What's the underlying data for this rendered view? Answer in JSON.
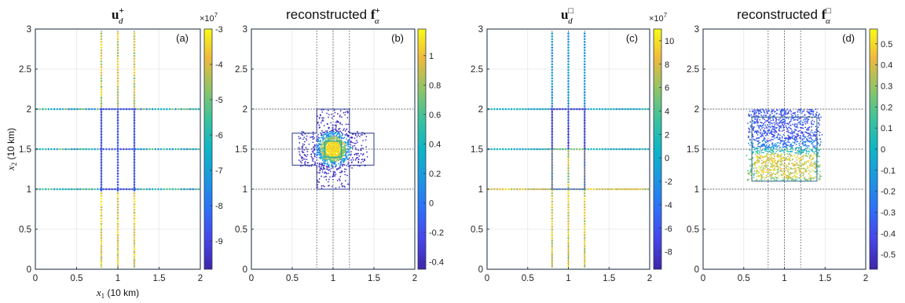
{
  "chart_data": [
    {
      "type": "scatter",
      "panel_label": "(a)",
      "title_main": "u",
      "title_sub": "d",
      "title_sup": "+",
      "title_prefix": "",
      "xlabel": "x",
      "xlabel_sub": "1",
      "xlabel_unit": " (10 km)",
      "ylabel": "x",
      "ylabel_sub": "2",
      "ylabel_unit": " (10 km)",
      "xlim": [
        0,
        2
      ],
      "ylim": [
        0,
        3
      ],
      "xticks": [
        "0",
        "0.5",
        "1",
        "1.5",
        "2"
      ],
      "yticks": [
        "0",
        "0.5",
        "1",
        "1.5",
        "2",
        "2.5",
        "3"
      ],
      "colorbar": {
        "range": [
          -9.8,
          -3
        ],
        "ticks": [
          "-3",
          "-4",
          "-5",
          "-6",
          "-7",
          "-8",
          "-9"
        ],
        "tick_values": [
          -3,
          -4,
          -5,
          -6,
          -7,
          -8,
          -9
        ],
        "exponent_base": "×10",
        "exponent_power": "7"
      },
      "guide_lines_v": [
        0.8,
        1.0,
        1.2
      ],
      "guide_lines_h": [
        1.0,
        1.5,
        2.0
      ]
    },
    {
      "type": "scatter",
      "panel_label": "(b)",
      "title_prefix": "reconstructed ",
      "title_main": "f",
      "title_sub": "α",
      "title_sup": "+",
      "xlim": [
        0,
        2
      ],
      "ylim": [
        0,
        3
      ],
      "xticks": [
        "0",
        "0.5",
        "1",
        "1.5",
        "2"
      ],
      "yticks": [
        "0",
        "0.5",
        "1",
        "1.5",
        "2",
        "2.5",
        "3"
      ],
      "colorbar": {
        "range": [
          -0.45,
          1.18
        ],
        "ticks": [
          "1",
          "0.8",
          "0.6",
          "0.4",
          "0.2",
          "0",
          "-0.2",
          "-0.4"
        ],
        "tick_values": [
          1,
          0.8,
          0.6,
          0.4,
          0.2,
          0,
          -0.2,
          -0.4
        ]
      },
      "guide_lines_v": [
        0.8,
        1.0,
        1.2
      ],
      "guide_lines_h": [
        1.0,
        1.5,
        2.0
      ]
    },
    {
      "type": "scatter",
      "panel_label": "(c)",
      "title_main": "u",
      "title_sub": "d",
      "title_sup": "□",
      "title_prefix": "",
      "xlim": [
        0,
        2
      ],
      "ylim": [
        0,
        3
      ],
      "xticks": [
        "0",
        "0.5",
        "1",
        "1.5",
        "2"
      ],
      "yticks": [
        "0",
        "0.5",
        "1",
        "1.5",
        "2",
        "2.5",
        "3"
      ],
      "colorbar": {
        "range": [
          -9.5,
          11
        ],
        "ticks": [
          "10",
          "8",
          "6",
          "4",
          "2",
          "0",
          "-2",
          "-4",
          "-6",
          "-8"
        ],
        "tick_values": [
          10,
          8,
          6,
          4,
          2,
          0,
          -2,
          -4,
          -6,
          -8
        ],
        "exponent_base": "×10",
        "exponent_power": "7"
      },
      "guide_lines_v": [
        0.8,
        1.0,
        1.2
      ],
      "guide_lines_h": [
        1.0,
        1.5,
        2.0
      ]
    },
    {
      "type": "scatter",
      "panel_label": "(d)",
      "title_prefix": "reconstructed ",
      "title_main": "f",
      "title_sub": "α",
      "title_sup": "□",
      "xlim": [
        0,
        2
      ],
      "ylim": [
        0,
        3
      ],
      "xticks": [
        "0",
        "0.5",
        "1",
        "1.5",
        "2"
      ],
      "yticks": [
        "0",
        "0.5",
        "1",
        "1.5",
        "2",
        "2.5",
        "3"
      ],
      "colorbar": {
        "range": [
          -0.57,
          0.57
        ],
        "ticks": [
          "0.5",
          "0.4",
          "0.3",
          "0.2",
          "0.1",
          "0",
          "-0.1",
          "-0.2",
          "-0.3",
          "-0.4",
          "-0.5"
        ],
        "tick_values": [
          0.5,
          0.4,
          0.3,
          0.2,
          0.1,
          0,
          -0.1,
          -0.2,
          -0.3,
          -0.4,
          -0.5
        ]
      },
      "guide_lines_v": [
        0.8,
        1.0,
        1.2
      ],
      "guide_lines_h": [
        1.0,
        1.5,
        2.0
      ]
    }
  ]
}
